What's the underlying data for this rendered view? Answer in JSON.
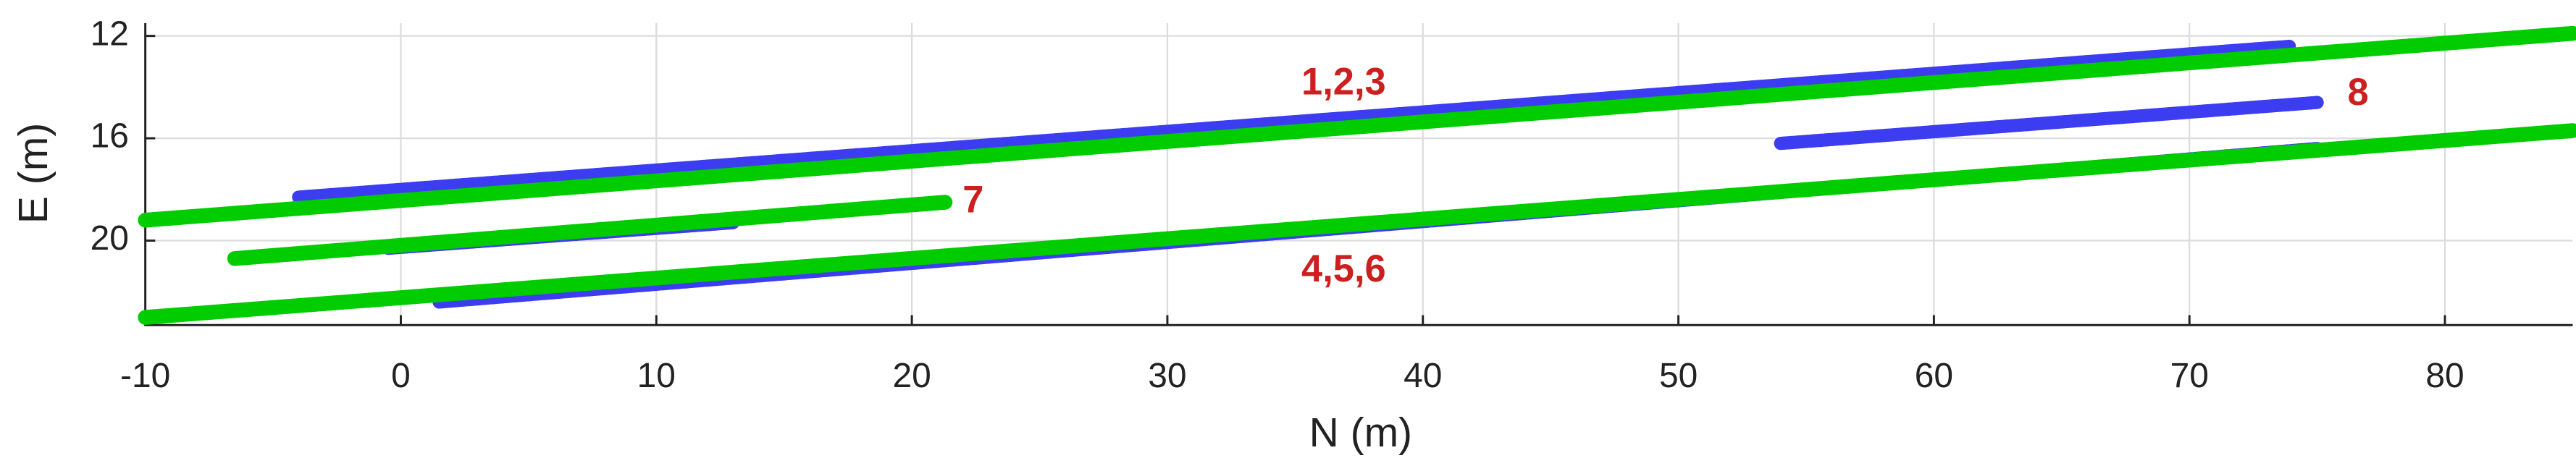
{
  "chart_data": {
    "type": "line",
    "xlabel": "N (m)",
    "ylabel": "E (m)",
    "xlim": [
      -10,
      85
    ],
    "ylim": [
      11.5,
      23.3
    ],
    "y_reversed": true,
    "grid": true,
    "xticks": [
      -10,
      0,
      10,
      20,
      30,
      40,
      50,
      60,
      70,
      80
    ],
    "yticks": [
      12,
      16,
      20
    ],
    "series": [
      {
        "color": "#3c3cf0",
        "x": [
          -4,
          74
        ],
        "values": [
          18.3,
          12.4
        ]
      },
      {
        "color": "#3c3cf0",
        "x": [
          -0.5,
          13
        ],
        "values": [
          20.3,
          19.3
        ]
      },
      {
        "color": "#3c3cf0",
        "x": [
          54,
          75
        ],
        "values": [
          16.2,
          14.6
        ]
      },
      {
        "color": "#3c3cf0",
        "x": [
          1.5,
          75
        ],
        "values": [
          22.4,
          16.4
        ]
      },
      {
        "color": "#00cc00",
        "x": [
          -10,
          85
        ],
        "values": [
          19.2,
          11.9
        ]
      },
      {
        "color": "#00cc00",
        "x": [
          -6.5,
          21.3
        ],
        "values": [
          20.7,
          18.5
        ]
      },
      {
        "color": "#00cc00",
        "x": [
          -10,
          85
        ],
        "values": [
          23.0,
          15.7
        ]
      }
    ],
    "annotations": [
      {
        "text": "1,2,3",
        "x": 36.9,
        "y": 13.9
      },
      {
        "text": "8",
        "x": 76.6,
        "y": 14.3
      },
      {
        "text": "7",
        "x": 22.4,
        "y": 18.5
      },
      {
        "text": "4,5,6",
        "x": 36.9,
        "y": 21.2
      }
    ]
  }
}
